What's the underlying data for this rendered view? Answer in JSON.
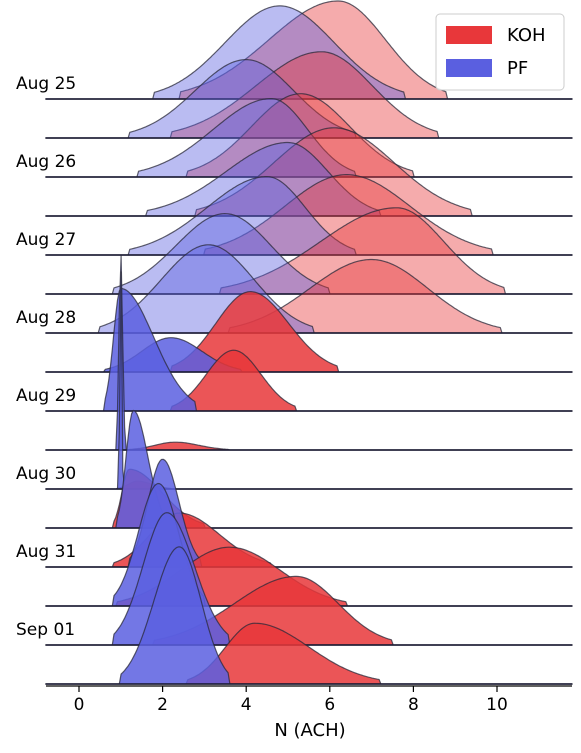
{
  "chart_data": {
    "type": "ridgeline",
    "xlabel": "N (ACH)",
    "xlim": [
      -0.8,
      11.8
    ],
    "xticks": [
      0,
      2,
      4,
      6,
      8,
      10
    ],
    "row_labels": [
      "Aug 25",
      "Aug 26",
      "Aug 27",
      "Aug 28",
      "Aug 29",
      "Aug 30",
      "Aug 31",
      "Sep 01"
    ],
    "legend": {
      "position": "top-right",
      "entries": [
        {
          "label": "KOH",
          "color": "#e8373a"
        },
        {
          "label": "PF",
          "color": "#5a5fe0"
        }
      ]
    },
    "series": [
      {
        "name": "KOH",
        "color": "#e8373a",
        "rows": [
          {
            "peak": 6.2,
            "support": [
              2.4,
              8.8
            ],
            "height": 1.0
          },
          {
            "peak": 5.8,
            "support": [
              2.2,
              8.6
            ],
            "height": 0.88
          },
          {
            "peak": 5.3,
            "support": [
              2.6,
              8.0
            ],
            "height": 0.85
          },
          {
            "peak": 6.1,
            "support": [
              2.8,
              9.4
            ],
            "height": 0.9
          },
          {
            "peak": 6.4,
            "support": [
              3.0,
              9.9
            ],
            "height": 0.82
          },
          {
            "peak": 7.6,
            "support": [
              3.4,
              10.2
            ],
            "height": 0.88
          },
          {
            "peak": 7.0,
            "support": [
              3.6,
              10.1
            ],
            "height": 0.75
          },
          {
            "peak": 4.1,
            "support": [
              2.2,
              6.2
            ],
            "height": 0.82
          },
          {
            "peak": 3.7,
            "support": [
              2.2,
              5.2
            ],
            "height": 0.62
          },
          {
            "peak": 2.3,
            "support": [
              1.2,
              3.6
            ],
            "height": 0.08
          },
          {
            "peak": 1.4,
            "support": [
              0.9,
              2.2
            ],
            "height": 0.08
          },
          {
            "peak": 1.2,
            "support": [
              0.8,
              3.0
            ],
            "height": 0.6
          },
          {
            "peak": 2.4,
            "support": [
              0.8,
              4.6
            ],
            "height": 0.55
          },
          {
            "peak": 3.6,
            "support": [
              0.9,
              6.4
            ],
            "height": 0.6
          },
          {
            "peak": 5.2,
            "support": [
              1.8,
              7.5
            ],
            "height": 0.7
          },
          {
            "peak": 4.2,
            "support": [
              2.6,
              7.2
            ],
            "height": 0.62
          }
        ]
      },
      {
        "name": "PF",
        "color": "#5a5fe0",
        "rows": [
          {
            "peak": 4.8,
            "support": [
              1.8,
              7.8
            ],
            "height": 0.95
          },
          {
            "peak": 4.0,
            "support": [
              1.2,
              6.6
            ],
            "height": 0.8
          },
          {
            "peak": 4.6,
            "support": [
              1.4,
              6.6
            ],
            "height": 0.8
          },
          {
            "peak": 5.0,
            "support": [
              1.6,
              7.2
            ],
            "height": 0.75
          },
          {
            "peak": 4.5,
            "support": [
              1.2,
              6.6
            ],
            "height": 0.8
          },
          {
            "peak": 3.5,
            "support": [
              0.8,
              6.0
            ],
            "height": 0.82
          },
          {
            "peak": 3.1,
            "support": [
              0.5,
              5.6
            ],
            "height": 0.9
          },
          {
            "peak": 2.2,
            "support": [
              0.6,
              3.9
            ],
            "height": 0.35
          },
          {
            "peak": 1.0,
            "support": [
              0.6,
              2.8
            ],
            "height": 1.25
          },
          {
            "peak": 1.0,
            "support": [
              0.9,
              1.1
            ],
            "height": 2.0
          },
          {
            "peak": 1.0,
            "support": [
              0.95,
              1.05
            ],
            "height": 2.3
          },
          {
            "peak": 1.3,
            "support": [
              0.9,
              2.1
            ],
            "height": 1.2
          },
          {
            "peak": 2.0,
            "support": [
              1.2,
              2.9
            ],
            "height": 1.1
          },
          {
            "peak": 1.9,
            "support": [
              0.8,
              3.0
            ],
            "height": 1.25
          },
          {
            "peak": 2.1,
            "support": [
              0.8,
              3.6
            ],
            "height": 1.35
          },
          {
            "peak": 2.4,
            "support": [
              1.0,
              3.6
            ],
            "height": 1.4
          }
        ]
      }
    ]
  }
}
